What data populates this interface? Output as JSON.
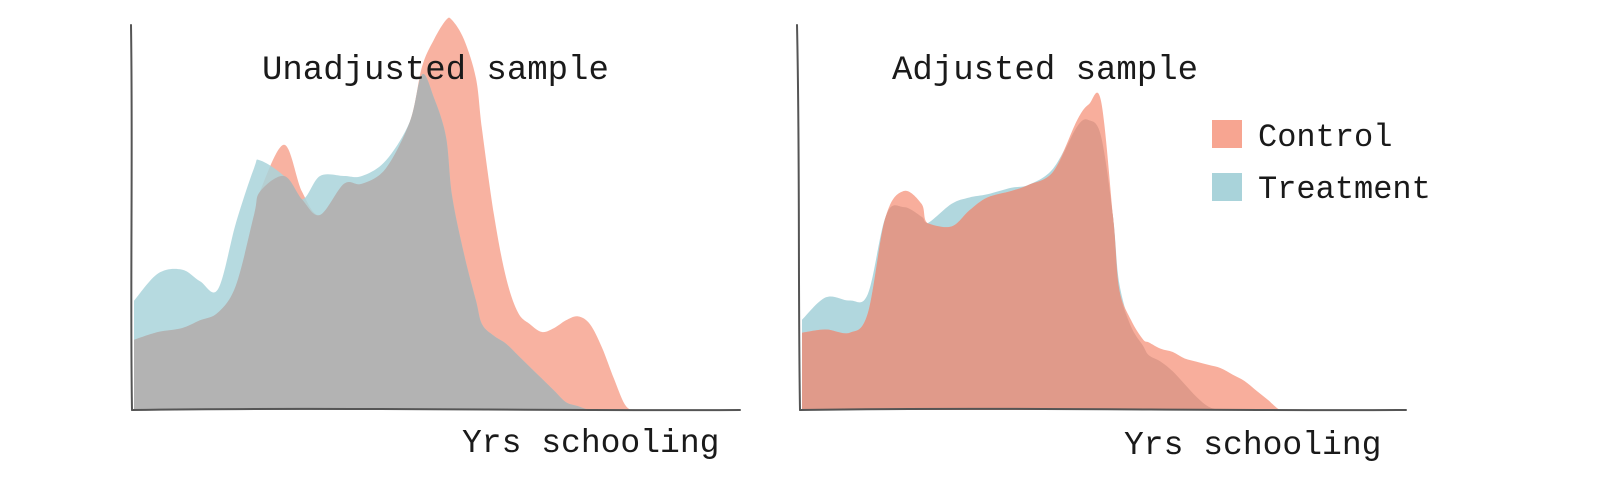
{
  "chart_data": [
    {
      "type": "area",
      "title": "Unadjusted sample",
      "xlabel": "Yrs schooling",
      "ylabel": "",
      "grid": false,
      "x": [
        0,
        0.04,
        0.08,
        0.11,
        0.14,
        0.17,
        0.2,
        0.21,
        0.25,
        0.28,
        0.31,
        0.35,
        0.38,
        0.42,
        0.46,
        0.48,
        0.5,
        0.52,
        0.53,
        0.55,
        0.57,
        0.58,
        0.6,
        0.62,
        0.64,
        0.66,
        0.68,
        0.7,
        0.72,
        0.74,
        0.76,
        0.78,
        0.8,
        0.82,
        0.84,
        0.86,
        0.88,
        0.9
      ],
      "series": [
        {
          "name": "Control",
          "color": "#f7a591",
          "values": [
            0.18,
            0.2,
            0.21,
            0.23,
            0.25,
            0.32,
            0.5,
            0.56,
            0.68,
            0.56,
            0.5,
            0.58,
            0.58,
            0.62,
            0.74,
            0.88,
            0.95,
            1.0,
            1.0,
            0.95,
            0.85,
            0.72,
            0.5,
            0.34,
            0.25,
            0.22,
            0.2,
            0.21,
            0.23,
            0.24,
            0.22,
            0.16,
            0.08,
            0.01,
            0,
            0,
            0,
            0
          ]
        },
        {
          "name": "Treatment",
          "color": "#a9d3da",
          "values": [
            0.28,
            0.35,
            0.36,
            0.33,
            0.31,
            0.48,
            0.62,
            0.64,
            0.6,
            0.54,
            0.6,
            0.6,
            0.6,
            0.64,
            0.74,
            0.86,
            0.8,
            0.7,
            0.55,
            0.4,
            0.28,
            0.22,
            0.19,
            0.17,
            0.14,
            0.11,
            0.08,
            0.05,
            0.02,
            0.01,
            0,
            0,
            0,
            0,
            0,
            0,
            0,
            0
          ]
        }
      ]
    },
    {
      "type": "area",
      "title": "Adjusted sample",
      "xlabel": "Yrs schooling",
      "ylabel": "",
      "grid": false,
      "legend": "top-right",
      "x": [
        0,
        0.04,
        0.08,
        0.11,
        0.14,
        0.17,
        0.2,
        0.21,
        0.25,
        0.28,
        0.31,
        0.35,
        0.38,
        0.42,
        0.46,
        0.48,
        0.5,
        0.52,
        0.53,
        0.55,
        0.57,
        0.58,
        0.6,
        0.62,
        0.64,
        0.66,
        0.68,
        0.7,
        0.72,
        0.74,
        0.76,
        0.78,
        0.8,
        0.82,
        0.84,
        0.86,
        0.88,
        0.9
      ],
      "series": [
        {
          "name": "Control",
          "color": "#f7a591",
          "values": [
            0.24,
            0.25,
            0.24,
            0.3,
            0.6,
            0.68,
            0.64,
            0.58,
            0.57,
            0.62,
            0.66,
            0.68,
            0.7,
            0.74,
            0.9,
            0.95,
            0.96,
            0.6,
            0.38,
            0.28,
            0.22,
            0.21,
            0.19,
            0.18,
            0.16,
            0.15,
            0.14,
            0.13,
            0.11,
            0.09,
            0.06,
            0.03,
            0,
            0,
            0,
            0,
            0,
            0
          ]
        },
        {
          "name": "Treatment",
          "color": "#a9d3da",
          "values": [
            0.28,
            0.35,
            0.34,
            0.36,
            0.6,
            0.63,
            0.6,
            0.58,
            0.64,
            0.66,
            0.67,
            0.69,
            0.7,
            0.75,
            0.88,
            0.9,
            0.85,
            0.6,
            0.4,
            0.26,
            0.2,
            0.17,
            0.15,
            0.12,
            0.08,
            0.04,
            0.01,
            0,
            0,
            0,
            0,
            0,
            0,
            0,
            0,
            0,
            0,
            0
          ]
        }
      ]
    }
  ]
}
